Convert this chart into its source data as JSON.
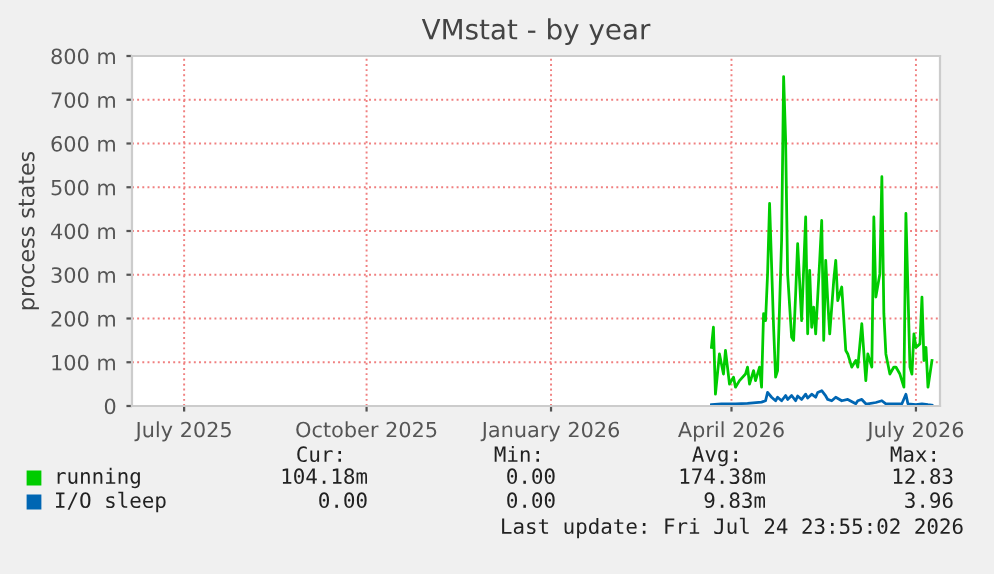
{
  "chart_data": {
    "type": "line",
    "title": "VMstat - by year",
    "ylabel": "process states",
    "xlim": [
      "2025-06-20",
      "2026-07-28"
    ],
    "xticks": [
      {
        "value": "2025-07-16",
        "label": "July 2025"
      },
      {
        "value": "2025-10-15",
        "label": "October 2025"
      },
      {
        "value": "2026-01-15",
        "label": "January 2026"
      },
      {
        "value": "2026-04-15",
        "label": "April 2026"
      },
      {
        "value": "2026-07-16",
        "label": "July 2026"
      }
    ],
    "ylim": [
      0,
      800
    ],
    "yticks": [
      0,
      {
        "value": 100,
        "label": "100 m"
      },
      {
        "value": 200,
        "label": "200 m"
      },
      {
        "value": 300,
        "label": "300 m"
      },
      {
        "value": 400,
        "label": "400 m"
      },
      {
        "value": 500,
        "label": "500 m"
      },
      {
        "value": 600,
        "label": "600 m"
      },
      {
        "value": 700,
        "label": "700 m"
      },
      {
        "value": 800,
        "label": "800 m"
      }
    ],
    "grid": true,
    "legend": "bottom left",
    "series": [
      {
        "name": "running",
        "color": "#00cc00",
        "x": [
          "2026-04-05",
          "2026-04-06",
          "2026-04-07",
          "2026-04-09",
          "2026-04-11",
          "2026-04-12",
          "2026-04-13",
          "2026-04-14",
          "2026-04-16",
          "2026-04-17",
          "2026-04-19",
          "2026-04-22",
          "2026-04-23",
          "2026-04-24",
          "2026-04-26",
          "2026-04-27",
          "2026-04-29",
          "2026-04-30",
          "2026-05-01",
          "2026-05-02",
          "2026-05-03",
          "2026-05-04",
          "2026-05-06",
          "2026-05-07",
          "2026-05-08",
          "2026-05-10",
          "2026-05-11",
          "2026-05-12",
          "2026-05-13",
          "2026-05-15",
          "2026-05-16",
          "2026-05-17",
          "2026-05-18",
          "2026-05-20",
          "2026-05-22",
          "2026-05-23",
          "2026-05-24",
          "2026-05-25",
          "2026-05-26",
          "2026-05-27",
          "2026-05-29",
          "2026-05-30",
          "2026-05-31",
          "2026-06-01",
          "2026-06-02",
          "2026-06-03",
          "2026-06-05",
          "2026-06-06",
          "2026-06-07",
          "2026-06-09",
          "2026-06-11",
          "2026-06-12",
          "2026-06-14",
          "2026-06-16",
          "2026-06-17",
          "2026-06-19",
          "2026-06-21",
          "2026-06-22",
          "2026-06-24",
          "2026-06-25",
          "2026-06-26",
          "2026-06-28",
          "2026-06-29",
          "2026-06-30",
          "2026-07-01",
          "2026-07-03",
          "2026-07-05",
          "2026-07-06",
          "2026-07-08",
          "2026-07-10",
          "2026-07-11",
          "2026-07-13",
          "2026-07-14",
          "2026-07-15",
          "2026-07-16",
          "2026-07-18",
          "2026-07-19",
          "2026-07-20",
          "2026-07-21",
          "2026-07-22",
          "2026-07-24"
        ],
        "values": [
          134,
          180,
          27,
          119,
          73,
          127,
          89,
          50,
          66,
          43,
          58,
          73,
          89,
          50,
          81,
          58,
          89,
          43,
          211,
          195,
          302,
          463,
          180,
          66,
          81,
          379,
          753,
          608,
          302,
          157,
          150,
          256,
          371,
          195,
          432,
          165,
          310,
          180,
          226,
          165,
          333,
          424,
          150,
          333,
          241,
          165,
          287,
          333,
          241,
          272,
          127,
          119,
          89,
          104,
          89,
          188,
          58,
          119,
          89,
          432,
          249,
          302,
          524,
          211,
          119,
          73,
          89,
          89,
          73,
          43,
          440,
          89,
          73,
          165,
          134,
          142,
          249,
          104,
          134,
          43,
          104
        ]
      },
      {
        "name": "I/O sleep",
        "color": "#0066b3",
        "x": [
          "2026-04-05",
          "2026-04-10",
          "2026-04-17",
          "2026-04-23",
          "2026-04-30",
          "2026-05-02",
          "2026-05-03",
          "2026-05-05",
          "2026-05-07",
          "2026-05-08",
          "2026-05-10",
          "2026-05-12",
          "2026-05-13",
          "2026-05-15",
          "2026-05-17",
          "2026-05-18",
          "2026-05-20",
          "2026-05-22",
          "2026-05-23",
          "2026-05-25",
          "2026-05-27",
          "2026-05-28",
          "2026-05-30",
          "2026-06-01",
          "2026-06-02",
          "2026-06-04",
          "2026-06-06",
          "2026-06-09",
          "2026-06-12",
          "2026-06-16",
          "2026-06-17",
          "2026-06-19",
          "2026-06-21",
          "2026-06-22",
          "2026-06-26",
          "2026-06-29",
          "2026-07-01",
          "2026-07-06",
          "2026-07-09",
          "2026-07-11",
          "2026-07-12",
          "2026-07-16",
          "2026-07-19",
          "2026-07-22",
          "2026-07-24"
        ],
        "values": [
          3,
          5,
          5,
          6,
          9,
          12,
          31,
          20,
          12,
          20,
          12,
          24,
          15,
          24,
          12,
          23,
          15,
          27,
          18,
          27,
          20,
          31,
          35,
          23,
          15,
          12,
          20,
          12,
          15,
          5,
          12,
          15,
          5,
          5,
          8,
          12,
          5,
          5,
          5,
          27,
          5,
          3,
          5,
          3,
          2
        ]
      }
    ],
    "annotations": [
      "Cur:",
      "Min:",
      "Avg:",
      "Max:",
      "104.18m",
      "0.00",
      "174.38m",
      "12.83",
      "0.00",
      "0.00",
      "9.83m",
      "3.96",
      "Last update: Fri Jul 24 23:55:02 2026"
    ]
  }
}
